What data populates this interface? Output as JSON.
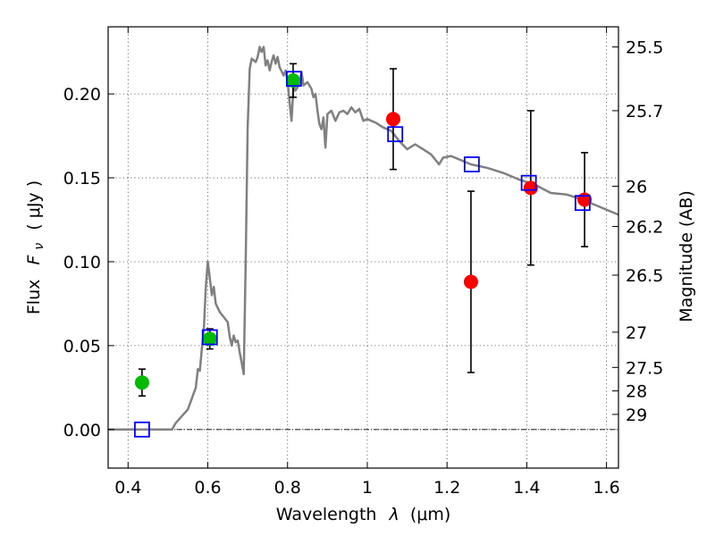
{
  "chart_data": {
    "type": "scatter",
    "xlabel": "Wavelength",
    "xlabel_symbol": "λ",
    "xlabel_unit": "(μm)",
    "ylabel": "Flux",
    "ylabel_symbol": "F",
    "ylabel_subscript": "ν",
    "ylabel_unit": "( μJy )",
    "y2label": "Magnitude (AB)",
    "xlim": [
      0.35,
      1.63
    ],
    "ylim": [
      -0.023,
      0.24
    ],
    "x_ticks": [
      0.4,
      0.6,
      0.8,
      1.0,
      1.2,
      1.4,
      1.6
    ],
    "x_tick_labels": [
      "0.4",
      "0.6",
      "0.8",
      "1",
      "1.2",
      "1.4",
      "1.6"
    ],
    "y_ticks": [
      0.0,
      0.05,
      0.1,
      0.15,
      0.2
    ],
    "y_tick_labels": [
      "0.00",
      "0.05",
      "0.10",
      "0.15",
      "0.20"
    ],
    "y2_ticks": [
      {
        "flux": 0.228,
        "label": "25.5"
      },
      {
        "flux": 0.19,
        "label": "25.7"
      },
      {
        "flux": 0.145,
        "label": "26"
      },
      {
        "flux": 0.121,
        "label": "26.2"
      },
      {
        "flux": 0.092,
        "label": "26.5"
      },
      {
        "flux": 0.058,
        "label": "27"
      },
      {
        "flux": 0.037,
        "label": "27.5"
      },
      {
        "flux": 0.023,
        "label": "28"
      },
      {
        "flux": 0.009,
        "label": "29"
      }
    ],
    "grid": true,
    "model_sed": {
      "name": "model spectrum",
      "color": "#808080",
      "points": [
        [
          0.35,
          0.0
        ],
        [
          0.51,
          0.0
        ],
        [
          0.52,
          0.004
        ],
        [
          0.55,
          0.012
        ],
        [
          0.57,
          0.025
        ],
        [
          0.575,
          0.036
        ],
        [
          0.58,
          0.035
        ],
        [
          0.585,
          0.048
        ],
        [
          0.59,
          0.06
        ],
        [
          0.595,
          0.085
        ],
        [
          0.6,
          0.1
        ],
        [
          0.605,
          0.09
        ],
        [
          0.61,
          0.08
        ],
        [
          0.615,
          0.085
        ],
        [
          0.62,
          0.075
        ],
        [
          0.63,
          0.07
        ],
        [
          0.64,
          0.067
        ],
        [
          0.65,
          0.064
        ],
        [
          0.655,
          0.055
        ],
        [
          0.66,
          0.05
        ],
        [
          0.665,
          0.056
        ],
        [
          0.67,
          0.052
        ],
        [
          0.675,
          0.053
        ],
        [
          0.68,
          0.046
        ],
        [
          0.685,
          0.04
        ],
        [
          0.69,
          0.033
        ],
        [
          0.695,
          0.1
        ],
        [
          0.7,
          0.18
        ],
        [
          0.705,
          0.215
        ],
        [
          0.71,
          0.221
        ],
        [
          0.72,
          0.219
        ],
        [
          0.725,
          0.222
        ],
        [
          0.73,
          0.228
        ],
        [
          0.735,
          0.225
        ],
        [
          0.74,
          0.228
        ],
        [
          0.745,
          0.217
        ],
        [
          0.75,
          0.22
        ],
        [
          0.755,
          0.214
        ],
        [
          0.76,
          0.219
        ],
        [
          0.765,
          0.223
        ],
        [
          0.77,
          0.218
        ],
        [
          0.775,
          0.222
        ],
        [
          0.78,
          0.216
        ],
        [
          0.79,
          0.211
        ],
        [
          0.795,
          0.214
        ],
        [
          0.8,
          0.208
        ],
        [
          0.805,
          0.195
        ],
        [
          0.81,
          0.184
        ],
        [
          0.815,
          0.205
        ],
        [
          0.82,
          0.202
        ],
        [
          0.83,
          0.206
        ],
        [
          0.835,
          0.213
        ],
        [
          0.84,
          0.205
        ],
        [
          0.85,
          0.207
        ],
        [
          0.86,
          0.203
        ],
        [
          0.865,
          0.198
        ],
        [
          0.87,
          0.2
        ],
        [
          0.875,
          0.19
        ],
        [
          0.88,
          0.182
        ],
        [
          0.885,
          0.179
        ],
        [
          0.89,
          0.186
        ],
        [
          0.895,
          0.168
        ],
        [
          0.9,
          0.188
        ],
        [
          0.91,
          0.19
        ],
        [
          0.92,
          0.184
        ],
        [
          0.93,
          0.189
        ],
        [
          0.94,
          0.19
        ],
        [
          0.95,
          0.188
        ],
        [
          0.96,
          0.192
        ],
        [
          0.97,
          0.189
        ],
        [
          0.98,
          0.191
        ],
        [
          0.99,
          0.184
        ],
        [
          1.0,
          0.185
        ],
        [
          1.02,
          0.183
        ],
        [
          1.04,
          0.18
        ],
        [
          1.06,
          0.178
        ],
        [
          1.08,
          0.172
        ],
        [
          1.1,
          0.167
        ],
        [
          1.12,
          0.17
        ],
        [
          1.14,
          0.167
        ],
        [
          1.16,
          0.164
        ],
        [
          1.18,
          0.158
        ],
        [
          1.19,
          0.162
        ],
        [
          1.21,
          0.163
        ],
        [
          1.23,
          0.161
        ],
        [
          1.26,
          0.158
        ],
        [
          1.3,
          0.156
        ],
        [
          1.34,
          0.153
        ],
        [
          1.38,
          0.149
        ],
        [
          1.42,
          0.146
        ],
        [
          1.46,
          0.141
        ],
        [
          1.5,
          0.14
        ],
        [
          1.54,
          0.137
        ],
        [
          1.58,
          0.133
        ],
        [
          1.63,
          0.128
        ]
      ]
    },
    "series": [
      {
        "name": "green observations",
        "color": "#00bb00",
        "points": [
          {
            "x": 0.435,
            "y": 0.028,
            "err": 0.008
          },
          {
            "x": 0.605,
            "y": 0.054,
            "err": 0.006
          },
          {
            "x": 0.814,
            "y": 0.208,
            "err": 0.01
          }
        ]
      },
      {
        "name": "red observations",
        "color": "#ff0000",
        "points": [
          {
            "x": 1.065,
            "y": 0.185,
            "err": 0.03
          },
          {
            "x": 1.26,
            "y": 0.088,
            "err": 0.054
          },
          {
            "x": 1.41,
            "y": 0.144,
            "err": 0.046
          },
          {
            "x": 1.545,
            "y": 0.137,
            "err": 0.028
          }
        ]
      },
      {
        "name": "model photometry",
        "color": "#0000ff",
        "marker": "open-square",
        "points": [
          {
            "x": 0.435,
            "y": 0.0
          },
          {
            "x": 0.605,
            "y": 0.055
          },
          {
            "x": 0.816,
            "y": 0.209
          },
          {
            "x": 1.07,
            "y": 0.176
          },
          {
            "x": 1.262,
            "y": 0.158
          },
          {
            "x": 1.405,
            "y": 0.147
          },
          {
            "x": 1.54,
            "y": 0.135
          }
        ]
      }
    ]
  }
}
